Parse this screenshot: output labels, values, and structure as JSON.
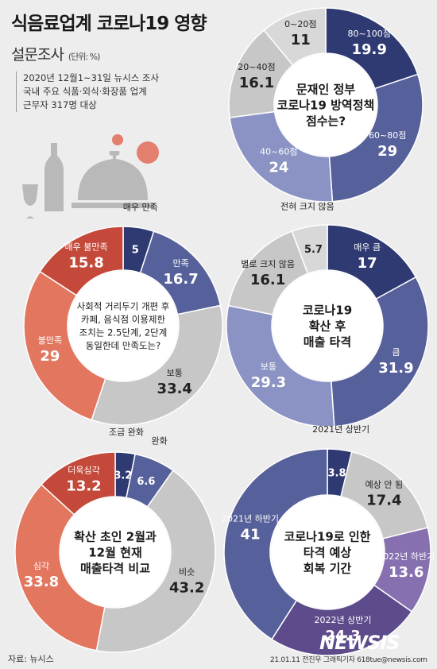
{
  "header": {
    "title": "식음료업계 코로나19 영향",
    "subtitle": "설문조사",
    "unit": "(단위: %)",
    "survey_lines": [
      "2020년 12월1~31일 뉴시스 조사",
      "국내 주요 식품·외식·화장품 업계",
      "근무자 317명 대상"
    ]
  },
  "footer": {
    "source": "자료: 뉴시스",
    "credit": "21.01.11 전진우 그래픽기자 618tue@newsis.com",
    "logo": "NEWSIS"
  },
  "colors": {
    "navy": "#2f3a72",
    "slate": "#56609a",
    "lavender": "#8a93c4",
    "gray": "#c7c7c7",
    "red": "#c4493a",
    "salmon": "#e2765e",
    "purple1": "#5e4b8b",
    "purple2": "#8670b0"
  },
  "chart_data": [
    {
      "type": "pie",
      "center_text": [
        "문재인 정부",
        "코로나19 방역정책",
        "점수는?"
      ],
      "slices": [
        {
          "label": "80~100점",
          "value": 19.9,
          "color": "#2f3a72"
        },
        {
          "label": "60~80점",
          "value": 29,
          "color": "#56609a"
        },
        {
          "label": "40~60점",
          "value": 24,
          "color": "#8a93c4"
        },
        {
          "label": "20~40점",
          "value": 16.1,
          "color": "#c7c7c7"
        },
        {
          "label": "0~20점",
          "value": 11,
          "color": "#d8d8d8"
        }
      ]
    },
    {
      "type": "pie",
      "center_text": [
        "사회적 거리두기 개편 후",
        "카페, 음식점 이용제한",
        "조치는 2.5단계, 2단계",
        "동일한데 만족도는?"
      ],
      "slices": [
        {
          "label": "매우 만족",
          "value": 5,
          "color": "#2f3a72"
        },
        {
          "label": "만족",
          "value": 16.7,
          "color": "#56609a"
        },
        {
          "label": "보통",
          "value": 33.4,
          "color": "#c7c7c7"
        },
        {
          "label": "불만족",
          "value": 29,
          "color": "#e2765e"
        },
        {
          "label": "매우 불만족",
          "value": 15.8,
          "color": "#c4493a"
        }
      ]
    },
    {
      "type": "pie",
      "center_text": [
        "코로나19",
        "확산 후",
        "매출 타격"
      ],
      "slices": [
        {
          "label": "매우 큼",
          "value": 17,
          "color": "#2f3a72"
        },
        {
          "label": "큼",
          "value": 31.9,
          "color": "#56609a"
        },
        {
          "label": "보통",
          "value": 29.3,
          "color": "#8a93c4"
        },
        {
          "label": "별로 크지 않음",
          "value": 16.1,
          "color": "#c7c7c7"
        },
        {
          "label": "전혀 크지 않음",
          "value": 5.7,
          "color": "#d8d8d8"
        }
      ]
    },
    {
      "type": "pie",
      "center_text": [
        "확산 초인 2월과",
        "12월 현재",
        "매출타격 비교"
      ],
      "slices": [
        {
          "label": "조금 완화",
          "value": 3.2,
          "color": "#2f3a72"
        },
        {
          "label": "완화",
          "value": 6.6,
          "color": "#56609a"
        },
        {
          "label": "비슷",
          "value": 43.2,
          "color": "#c7c7c7"
        },
        {
          "label": "심각",
          "value": 33.8,
          "color": "#e2765e"
        },
        {
          "label": "더욱심각",
          "value": 13.2,
          "color": "#c4493a"
        }
      ]
    },
    {
      "type": "pie",
      "center_text": [
        "코로나19로 인한",
        "타격 예상",
        "회복 기간"
      ],
      "slices": [
        {
          "label": "2021년 상반기",
          "value": 3.8,
          "color": "#2f3a72"
        },
        {
          "label": "예상 안 됨",
          "value": 17.4,
          "color": "#c7c7c7"
        },
        {
          "label": "2022년 하반기",
          "value": 13.6,
          "color": "#8670b0"
        },
        {
          "label": "2022년 상반기",
          "value": 24.3,
          "color": "#5e4b8b"
        },
        {
          "label": "2021년 하반기",
          "value": 41,
          "color": "#56609a"
        }
      ]
    }
  ]
}
